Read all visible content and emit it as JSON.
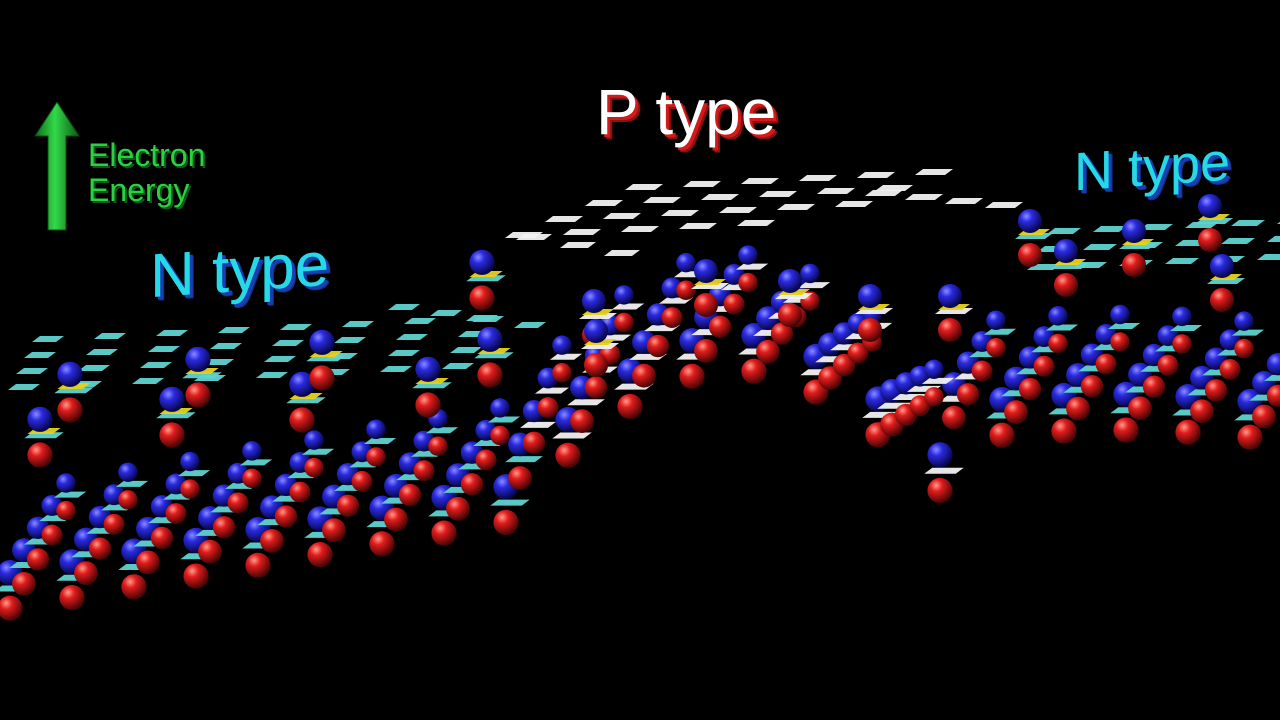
{
  "labels": {
    "n_left": "N type",
    "p_middle": "P type",
    "n_right": "N type",
    "axis_line1": "Electron",
    "axis_line2": "Energy"
  },
  "colors": {
    "background": "#000000",
    "electron": "#1a1ad6",
    "atom": "#d61a1a",
    "n_state": "#5fd3cf",
    "p_state": "#f2f2f2",
    "bond": "#e6d21a",
    "n_label": "#27d9e8",
    "p_label": "#ffffff",
    "axis": "#2bd142"
  },
  "icons": [
    "up-arrow-icon"
  ]
}
